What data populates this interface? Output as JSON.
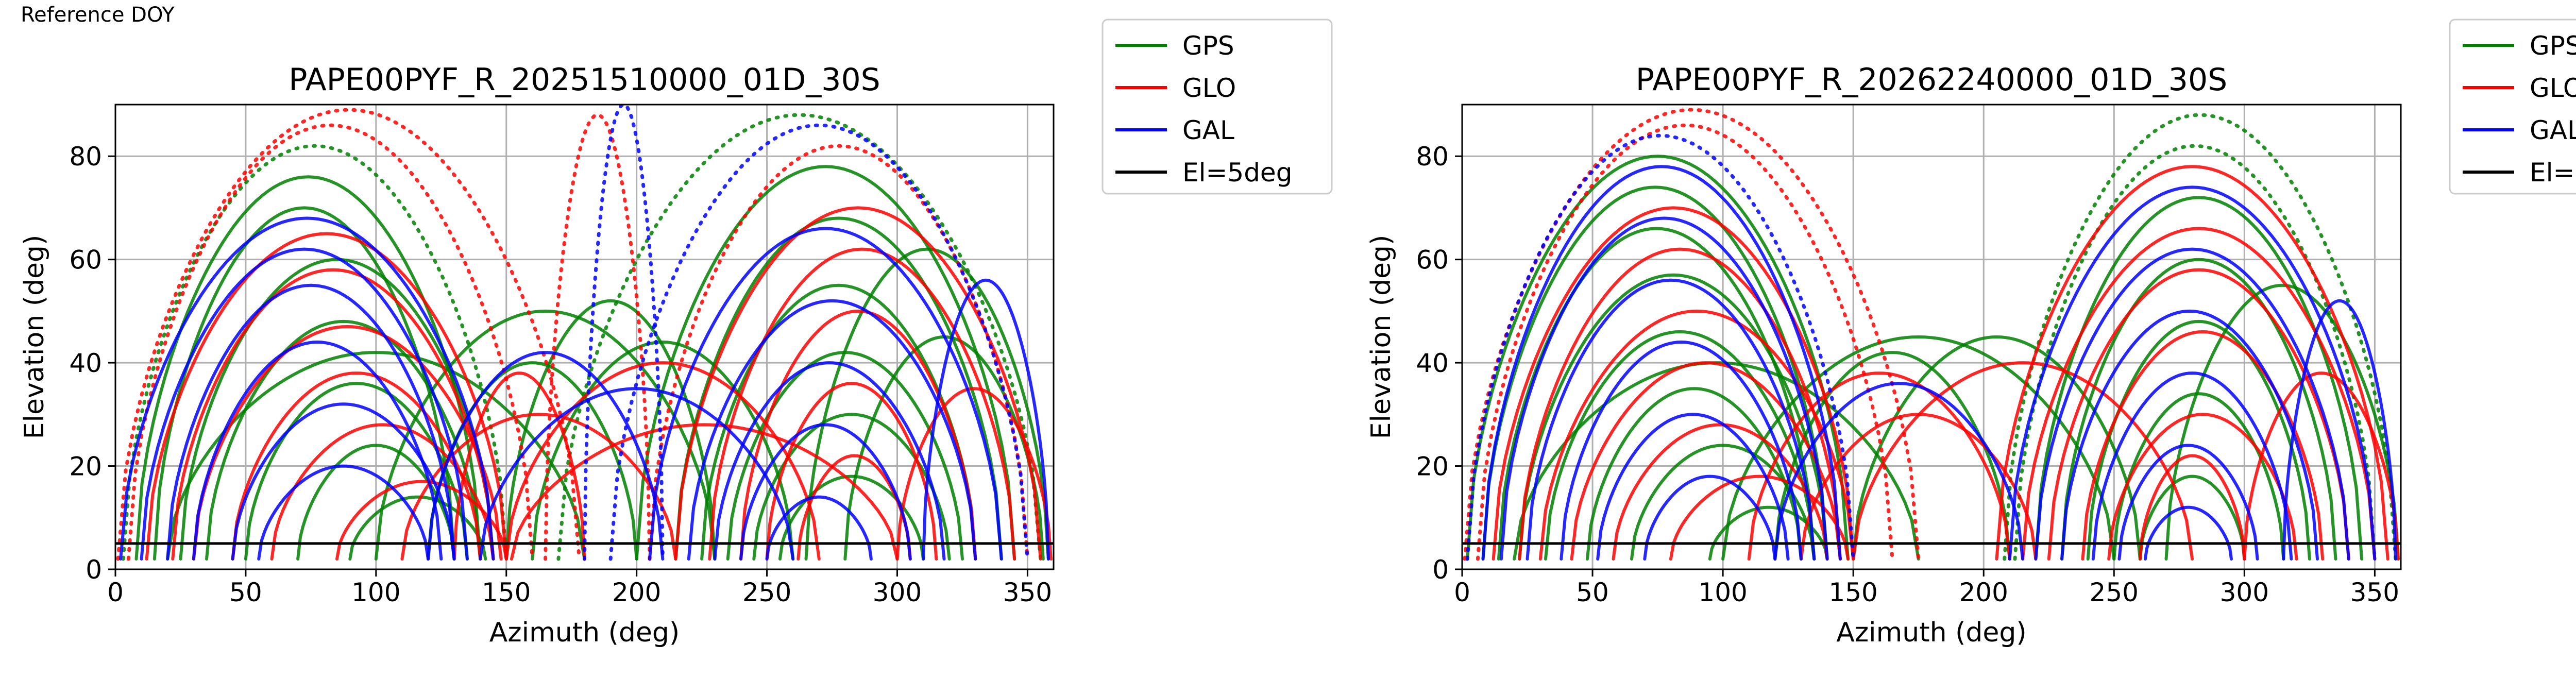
{
  "page_title": "Reference DOY",
  "colors": {
    "GPS": "#008000",
    "GLO": "#ff0000",
    "GAL": "#0000ff",
    "El=5deg": "#000000"
  },
  "legend_entries": [
    "GPS",
    "GLO",
    "GAL",
    "El=5deg"
  ],
  "chart_data": [
    {
      "type": "scatter",
      "title": "PAPE00PYF_R_20251510000_01D_30S",
      "xlabel": "Azimuth (deg)",
      "ylabel": "Elevation (deg)",
      "xlim": [
        0,
        360
      ],
      "ylim": [
        0,
        90
      ],
      "xticks": [
        0,
        50,
        100,
        150,
        200,
        250,
        300,
        350
      ],
      "yticks": [
        0,
        20,
        40,
        60,
        80
      ],
      "grid": true,
      "legend_position": "outside-right",
      "reference_line": {
        "name": "El=5deg",
        "y": 5
      },
      "series": [
        {
          "name": "GPS",
          "color": "#008000",
          "tracks": [
            {
              "az0": 3,
              "az1": 150,
              "peak": 82
            },
            {
              "az0": 8,
              "az1": 140,
              "peak": 76
            },
            {
              "az0": 15,
              "az1": 130,
              "peak": 70
            },
            {
              "az0": 25,
              "az1": 145,
              "peak": 60
            },
            {
              "az0": 35,
              "az1": 140,
              "peak": 48
            },
            {
              "az0": 50,
              "az1": 135,
              "peak": 36
            },
            {
              "az0": 70,
              "az1": 130,
              "peak": 24
            },
            {
              "az0": 90,
              "az1": 142,
              "peak": 14
            },
            {
              "az0": 120,
              "az1": 200,
              "peak": 40
            },
            {
              "az0": 150,
              "az1": 230,
              "peak": 52
            },
            {
              "az0": 160,
              "az1": 260,
              "peak": 44
            },
            {
              "az0": 170,
              "az1": 355,
              "peak": 88
            },
            {
              "az0": 200,
              "az1": 345,
              "peak": 78
            },
            {
              "az0": 215,
              "az1": 340,
              "peak": 68
            },
            {
              "az0": 225,
              "az1": 330,
              "peak": 55
            },
            {
              "az0": 235,
              "az1": 325,
              "peak": 42
            },
            {
              "az0": 245,
              "az1": 320,
              "peak": 30
            },
            {
              "az0": 255,
              "az1": 310,
              "peak": 18
            },
            {
              "az0": 20,
              "az1": 180,
              "peak": 42
            },
            {
              "az0": 100,
              "az1": 230,
              "peak": 50
            },
            {
              "az0": 265,
              "az1": 358,
              "peak": 62
            },
            {
              "az0": 280,
              "az1": 356,
              "peak": 45
            }
          ]
        },
        {
          "name": "GLO",
          "color": "#ff0000",
          "tracks": [
            {
              "az0": 1,
              "az1": 178,
              "peak": 89
            },
            {
              "az0": 5,
              "az1": 160,
              "peak": 86
            },
            {
              "az0": 12,
              "az1": 150,
              "peak": 65
            },
            {
              "az0": 22,
              "az1": 145,
              "peak": 58
            },
            {
              "az0": 30,
              "az1": 148,
              "peak": 47
            },
            {
              "az0": 45,
              "az1": 140,
              "peak": 38
            },
            {
              "az0": 60,
              "az1": 145,
              "peak": 28
            },
            {
              "az0": 85,
              "az1": 150,
              "peak": 17
            },
            {
              "az0": 110,
              "az1": 215,
              "peak": 30
            },
            {
              "az0": 152,
              "az1": 300,
              "peak": 28
            },
            {
              "az0": 165,
              "az1": 205,
              "peak": 88
            },
            {
              "az0": 205,
              "az1": 350,
              "peak": 82
            },
            {
              "az0": 215,
              "az1": 355,
              "peak": 70
            },
            {
              "az0": 228,
              "az1": 345,
              "peak": 62
            },
            {
              "az0": 240,
              "az1": 330,
              "peak": 50
            },
            {
              "az0": 250,
              "az1": 315,
              "peak": 36
            },
            {
              "az0": 262,
              "az1": 305,
              "peak": 22
            },
            {
              "az0": 150,
              "az1": 270,
              "peak": 40
            },
            {
              "az0": 130,
              "az1": 180,
              "peak": 38
            },
            {
              "az0": 300,
              "az1": 359,
              "peak": 35
            }
          ]
        },
        {
          "name": "GAL",
          "color": "#0000ff",
          "tracks": [
            {
              "az0": 2,
              "az1": 145,
              "peak": 68
            },
            {
              "az0": 10,
              "az1": 135,
              "peak": 62
            },
            {
              "az0": 20,
              "az1": 130,
              "peak": 55
            },
            {
              "az0": 30,
              "az1": 125,
              "peak": 44
            },
            {
              "az0": 45,
              "az1": 130,
              "peak": 32
            },
            {
              "az0": 55,
              "az1": 120,
              "peak": 20
            },
            {
              "az0": 180,
              "az1": 210,
              "peak": 90
            },
            {
              "az0": 190,
              "az1": 350,
              "peak": 86
            },
            {
              "az0": 205,
              "az1": 340,
              "peak": 66
            },
            {
              "az0": 220,
              "az1": 330,
              "peak": 52
            },
            {
              "az0": 230,
              "az1": 318,
              "peak": 40
            },
            {
              "az0": 240,
              "az1": 305,
              "peak": 28
            },
            {
              "az0": 250,
              "az1": 290,
              "peak": 14
            },
            {
              "az0": 310,
              "az1": 358,
              "peak": 56
            },
            {
              "az0": 120,
              "az1": 210,
              "peak": 42
            },
            {
              "az0": 140,
              "az1": 260,
              "peak": 35
            }
          ]
        }
      ]
    },
    {
      "type": "scatter",
      "title": "PAPE00PYF_R_20262240000_01D_30S",
      "xlabel": "Azimuth (deg)",
      "ylabel": "Elevation (deg)",
      "xlim": [
        0,
        360
      ],
      "ylim": [
        0,
        90
      ],
      "xticks": [
        0,
        50,
        100,
        150,
        200,
        250,
        300,
        350
      ],
      "yticks": [
        0,
        20,
        40,
        60,
        80
      ],
      "grid": true,
      "legend_position": "outside-right",
      "reference_line": {
        "name": "El=5deg",
        "y": 5
      },
      "series": [
        {
          "name": "GPS",
          "color": "#008000",
          "tracks": [
            {
              "az0": 2,
              "az1": 148,
              "peak": 80
            },
            {
              "az0": 8,
              "az1": 140,
              "peak": 74
            },
            {
              "az0": 14,
              "az1": 135,
              "peak": 66
            },
            {
              "az0": 22,
              "az1": 140,
              "peak": 57
            },
            {
              "az0": 32,
              "az1": 135,
              "peak": 46
            },
            {
              "az0": 48,
              "az1": 130,
              "peak": 35
            },
            {
              "az0": 65,
              "az1": 135,
              "peak": 24
            },
            {
              "az0": 95,
              "az1": 140,
              "peak": 12
            },
            {
              "az0": 120,
              "az1": 210,
              "peak": 42
            },
            {
              "az0": 150,
              "az1": 260,
              "peak": 45
            },
            {
              "az0": 208,
              "az1": 358,
              "peak": 88
            },
            {
              "az0": 212,
              "az1": 350,
              "peak": 82
            },
            {
              "az0": 220,
              "az1": 345,
              "peak": 72
            },
            {
              "az0": 230,
              "az1": 335,
              "peak": 60
            },
            {
              "az0": 240,
              "az1": 325,
              "peak": 48
            },
            {
              "az0": 250,
              "az1": 315,
              "peak": 34
            },
            {
              "az0": 260,
              "az1": 300,
              "peak": 18
            },
            {
              "az0": 20,
              "az1": 175,
              "peak": 40
            },
            {
              "az0": 100,
              "az1": 250,
              "peak": 45
            },
            {
              "az0": 270,
              "az1": 359,
              "peak": 55
            }
          ]
        },
        {
          "name": "GLO",
          "color": "#ff0000",
          "tracks": [
            {
              "az0": 1,
              "az1": 175,
              "peak": 89
            },
            {
              "az0": 6,
              "az1": 165,
              "peak": 86
            },
            {
              "az0": 12,
              "az1": 150,
              "peak": 70
            },
            {
              "az0": 22,
              "az1": 145,
              "peak": 62
            },
            {
              "az0": 30,
              "az1": 150,
              "peak": 50
            },
            {
              "az0": 42,
              "az1": 145,
              "peak": 40
            },
            {
              "az0": 58,
              "az1": 140,
              "peak": 28
            },
            {
              "az0": 80,
              "az1": 148,
              "peak": 18
            },
            {
              "az0": 110,
              "az1": 210,
              "peak": 38
            },
            {
              "az0": 150,
              "az1": 280,
              "peak": 40
            },
            {
              "az0": 205,
              "az1": 355,
              "peak": 78
            },
            {
              "az0": 215,
              "az1": 350,
              "peak": 66
            },
            {
              "az0": 225,
              "az1": 340,
              "peak": 58
            },
            {
              "az0": 238,
              "az1": 330,
              "peak": 46
            },
            {
              "az0": 248,
              "az1": 320,
              "peak": 30
            },
            {
              "az0": 260,
              "az1": 300,
              "peak": 22
            },
            {
              "az0": 130,
              "az1": 220,
              "peak": 30
            },
            {
              "az0": 300,
              "az1": 359,
              "peak": 38
            }
          ]
        },
        {
          "name": "GAL",
          "color": "#0000ff",
          "tracks": [
            {
              "az0": 2,
              "az1": 150,
              "peak": 84
            },
            {
              "az0": 8,
              "az1": 145,
              "peak": 78
            },
            {
              "az0": 15,
              "az1": 140,
              "peak": 68
            },
            {
              "az0": 25,
              "az1": 135,
              "peak": 56
            },
            {
              "az0": 38,
              "az1": 130,
              "peak": 44
            },
            {
              "az0": 52,
              "az1": 125,
              "peak": 30
            },
            {
              "az0": 70,
              "az1": 120,
              "peak": 18
            },
            {
              "az0": 210,
              "az1": 350,
              "peak": 74
            },
            {
              "az0": 220,
              "az1": 340,
              "peak": 62
            },
            {
              "az0": 230,
              "az1": 328,
              "peak": 50
            },
            {
              "az0": 242,
              "az1": 318,
              "peak": 38
            },
            {
              "az0": 252,
              "az1": 305,
              "peak": 24
            },
            {
              "az0": 262,
              "az1": 295,
              "peak": 12
            },
            {
              "az0": 315,
              "az1": 358,
              "peak": 52
            },
            {
              "az0": 120,
              "az1": 215,
              "peak": 36
            }
          ]
        }
      ]
    }
  ]
}
